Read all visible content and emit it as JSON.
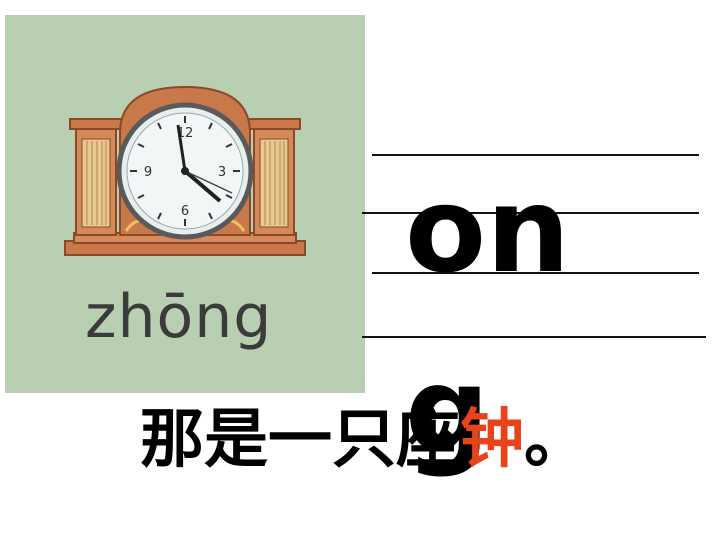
{
  "pinyin": "zhōng",
  "rime_letters": "ong",
  "sentence": {
    "before": "那是一只座",
    "highlight": "钟",
    "after": "。"
  },
  "colors": {
    "card_background": "#b9cfb2",
    "highlight": "#e8431a",
    "clock_wood": "#c9784a"
  },
  "clock": {
    "numerals": [
      "12",
      "3",
      "6",
      "9"
    ]
  }
}
